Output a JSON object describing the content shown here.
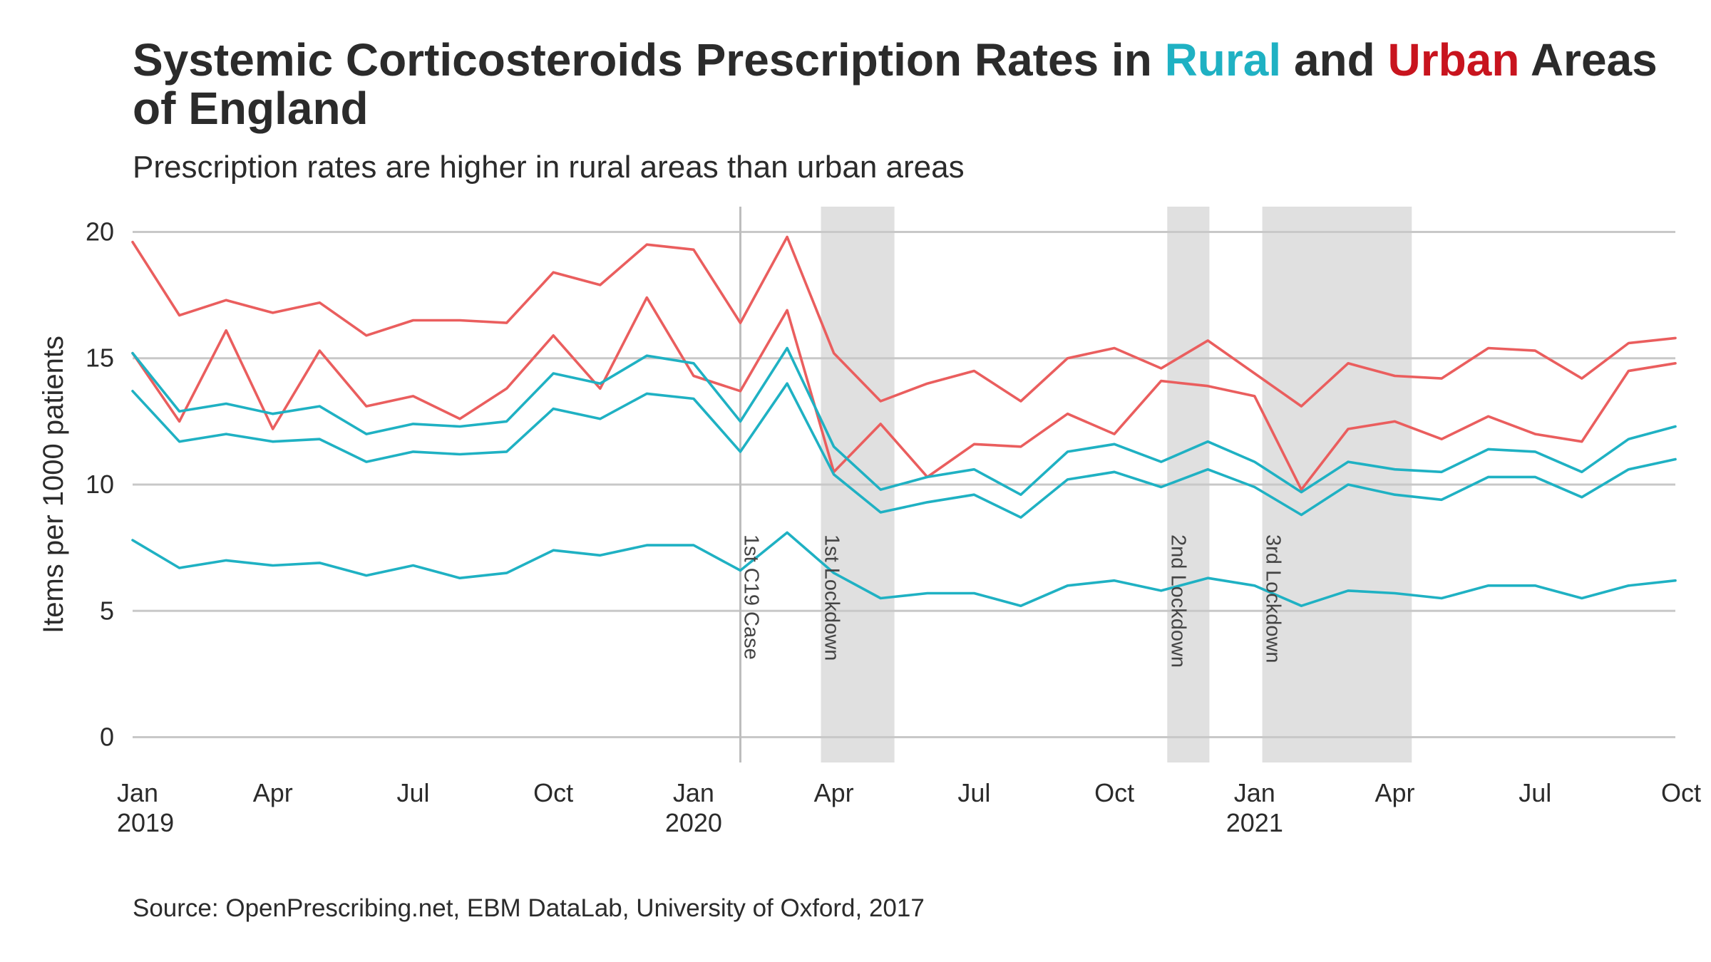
{
  "title": {
    "prefix": "Systemic Corticosteroids Prescription Rates in ",
    "rural_word": "Rural",
    "middle": " and ",
    "urban_word": "Urban",
    "suffix": " Areas of England"
  },
  "subtitle": "Prescription rates are higher in rural areas than urban areas",
  "source": "Source: OpenPrescribing.net, EBM DataLab, University of Oxford, 2017",
  "colors": {
    "rural": "#1fb1c3",
    "urban": "#c8141e",
    "urban_line": "#ea5e5e",
    "grid": "#c8c8c8",
    "shade": "#e0e0e0",
    "text": "#2b2b2b"
  },
  "chart_data": {
    "type": "line",
    "ylabel": "Items per 1000 patients",
    "xlabel": "",
    "ylim": [
      -1,
      21
    ],
    "yticks": [
      0,
      5,
      10,
      15,
      20
    ],
    "xlim": [
      "2019-01",
      "2021-10"
    ],
    "x_tick_labels": [
      {
        "month": "2019-01",
        "label": "Jan",
        "year": "2019"
      },
      {
        "month": "2019-04",
        "label": "Apr",
        "year": ""
      },
      {
        "month": "2019-07",
        "label": "Jul",
        "year": ""
      },
      {
        "month": "2019-10",
        "label": "Oct",
        "year": ""
      },
      {
        "month": "2020-01",
        "label": "Jan",
        "year": "2020"
      },
      {
        "month": "2020-04",
        "label": "Apr",
        "year": ""
      },
      {
        "month": "2020-07",
        "label": "Jul",
        "year": ""
      },
      {
        "month": "2020-10",
        "label": "Oct",
        "year": ""
      },
      {
        "month": "2021-01",
        "label": "Jan",
        "year": "2021"
      },
      {
        "month": "2021-04",
        "label": "Apr",
        "year": ""
      },
      {
        "month": "2021-07",
        "label": "Jul",
        "year": ""
      },
      {
        "month": "2021-10",
        "label": "Oct",
        "year": ""
      }
    ],
    "grid": "horizontal",
    "legend": "none",
    "x": [
      "2019-01",
      "2019-02",
      "2019-03",
      "2019-04",
      "2019-05",
      "2019-06",
      "2019-07",
      "2019-08",
      "2019-09",
      "2019-10",
      "2019-11",
      "2019-12",
      "2020-01",
      "2020-02",
      "2020-03",
      "2020-04",
      "2020-05",
      "2020-06",
      "2020-07",
      "2020-08",
      "2020-09",
      "2020-10",
      "2020-11",
      "2020-12",
      "2021-01",
      "2021-02",
      "2021-03",
      "2021-04",
      "2021-05",
      "2021-06",
      "2021-07",
      "2021-08",
      "2021-09",
      "2021-10"
    ],
    "series": [
      {
        "group": "urban",
        "values": [
          19.6,
          16.7,
          17.3,
          16.8,
          17.2,
          15.9,
          16.5,
          16.5,
          16.4,
          18.4,
          17.9,
          19.5,
          19.3,
          16.4,
          19.8,
          15.2,
          13.3,
          14.0,
          14.5,
          13.3,
          15.0,
          15.4,
          14.6,
          15.7,
          14.4,
          13.1,
          14.8,
          14.3,
          14.2,
          15.4,
          15.3,
          14.2,
          15.6,
          15.8
        ]
      },
      {
        "group": "urban",
        "values": [
          15.2,
          12.5,
          16.1,
          12.2,
          15.3,
          13.1,
          13.5,
          12.6,
          13.8,
          15.9,
          13.8,
          17.4,
          14.3,
          13.7,
          16.9,
          10.5,
          12.4,
          10.3,
          11.6,
          11.5,
          12.8,
          12.0,
          14.1,
          13.9,
          13.5,
          9.8,
          12.2,
          12.5,
          11.8,
          12.7,
          12.0,
          11.7,
          14.5,
          14.8
        ]
      },
      {
        "group": "rural",
        "values": [
          15.2,
          12.9,
          13.2,
          12.8,
          13.1,
          12.0,
          12.4,
          12.3,
          12.5,
          14.4,
          14.0,
          15.1,
          14.8,
          12.5,
          15.4,
          11.5,
          9.8,
          10.3,
          10.6,
          9.6,
          11.3,
          11.6,
          10.9,
          11.7,
          10.9,
          9.7,
          10.9,
          10.6,
          10.5,
          11.4,
          11.3,
          10.5,
          11.8,
          12.3
        ]
      },
      {
        "group": "rural",
        "values": [
          13.7,
          11.7,
          12.0,
          11.7,
          11.8,
          10.9,
          11.3,
          11.2,
          11.3,
          13.0,
          12.6,
          13.6,
          13.4,
          11.3,
          14.0,
          10.4,
          8.9,
          9.3,
          9.6,
          8.7,
          10.2,
          10.5,
          9.9,
          10.6,
          9.9,
          8.8,
          10.0,
          9.6,
          9.4,
          10.3,
          10.3,
          9.5,
          10.6,
          11.0
        ]
      },
      {
        "group": "rural",
        "values": [
          7.8,
          6.7,
          7.0,
          6.8,
          6.9,
          6.4,
          6.8,
          6.3,
          6.5,
          7.4,
          7.2,
          7.6,
          7.6,
          6.6,
          8.1,
          6.5,
          5.5,
          5.7,
          5.7,
          5.2,
          6.0,
          6.2,
          5.8,
          6.3,
          6.0,
          5.2,
          5.8,
          5.7,
          5.5,
          6.0,
          6.0,
          5.5,
          6.0,
          6.2
        ]
      }
    ],
    "annotations": [
      {
        "type": "line",
        "month": "2020-02",
        "label": "1st C19 Case"
      },
      {
        "type": "band",
        "start": "2020-03-23",
        "end": "2020-05-10",
        "label": "1st Lockdown"
      },
      {
        "type": "band",
        "start": "2020-11-05",
        "end": "2020-12-02",
        "label": "2nd Lockdown"
      },
      {
        "type": "band",
        "start": "2021-01-06",
        "end": "2021-04-12",
        "label": "3rd Lockdown"
      }
    ]
  }
}
